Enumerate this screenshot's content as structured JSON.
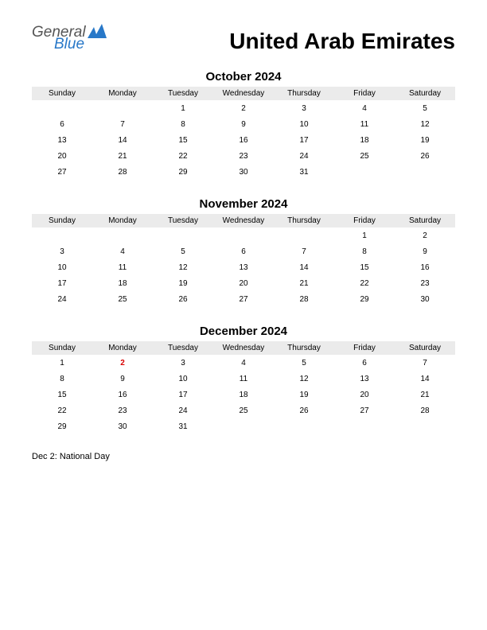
{
  "logo": {
    "text1": "General",
    "text2": "Blue",
    "shape_color": "#2878c8"
  },
  "title": "United Arab Emirates",
  "weekdays": [
    "Sunday",
    "Monday",
    "Tuesday",
    "Wednesday",
    "Thursday",
    "Friday",
    "Saturday"
  ],
  "colors": {
    "background": "#ffffff",
    "header_row_bg": "#ebebeb",
    "text": "#000000",
    "holiday_text": "#d90000",
    "logo_gray": "#555555",
    "logo_blue": "#2878c8"
  },
  "typography": {
    "title_fontsize": 28,
    "month_title_fontsize": 15,
    "weekday_fontsize": 10,
    "day_fontsize": 10,
    "holiday_note_fontsize": 11
  },
  "months": [
    {
      "title": "October 2024",
      "weeks": [
        [
          "",
          "",
          "1",
          "2",
          "3",
          "4",
          "5"
        ],
        [
          "6",
          "7",
          "8",
          "9",
          "10",
          "11",
          "12"
        ],
        [
          "13",
          "14",
          "15",
          "16",
          "17",
          "18",
          "19"
        ],
        [
          "20",
          "21",
          "22",
          "23",
          "24",
          "25",
          "26"
        ],
        [
          "27",
          "28",
          "29",
          "30",
          "31",
          "",
          ""
        ]
      ],
      "holidays": []
    },
    {
      "title": "November 2024",
      "weeks": [
        [
          "",
          "",
          "",
          "",
          "",
          "1",
          "2"
        ],
        [
          "3",
          "4",
          "5",
          "6",
          "7",
          "8",
          "9"
        ],
        [
          "10",
          "11",
          "12",
          "13",
          "14",
          "15",
          "16"
        ],
        [
          "17",
          "18",
          "19",
          "20",
          "21",
          "22",
          "23"
        ],
        [
          "24",
          "25",
          "26",
          "27",
          "28",
          "29",
          "30"
        ]
      ],
      "holidays": []
    },
    {
      "title": "December 2024",
      "weeks": [
        [
          "1",
          "2",
          "3",
          "4",
          "5",
          "6",
          "7"
        ],
        [
          "8",
          "9",
          "10",
          "11",
          "12",
          "13",
          "14"
        ],
        [
          "15",
          "16",
          "17",
          "18",
          "19",
          "20",
          "21"
        ],
        [
          "22",
          "23",
          "24",
          "25",
          "26",
          "27",
          "28"
        ],
        [
          "29",
          "30",
          "31",
          "",
          "",
          "",
          ""
        ]
      ],
      "holidays": [
        {
          "row": 0,
          "col": 1
        }
      ]
    }
  ],
  "holiday_notes": [
    "Dec 2: National Day"
  ]
}
